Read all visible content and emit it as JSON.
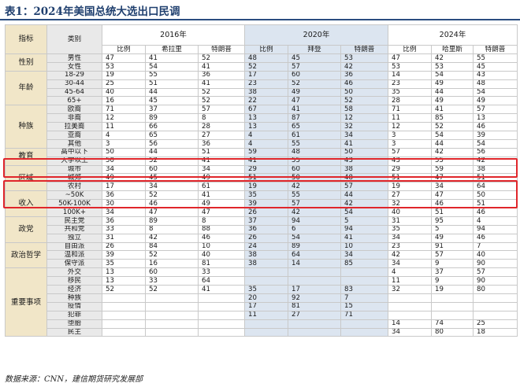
{
  "title": "表1：2024年美国总统大选出口民调",
  "source": "数据来源：CNN，建信期货研究发展部",
  "header": {
    "col_indicator": "指标",
    "col_category": "类别",
    "years": [
      "2016年",
      "2020年",
      "2024年"
    ],
    "sub": [
      [
        "比例",
        "希拉里",
        "特朗普"
      ],
      [
        "比例",
        "拜登",
        "特朗普"
      ],
      [
        "比例",
        "哈里斯",
        "特朗普"
      ]
    ]
  },
  "groups": [
    {
      "name": "性别",
      "rows": [
        {
          "label": "男性",
          "v": [
            "47",
            "41",
            "52",
            "48",
            "45",
            "53",
            "47",
            "42",
            "55"
          ]
        },
        {
          "label": "女性",
          "v": [
            "53",
            "54",
            "41",
            "52",
            "57",
            "42",
            "53",
            "53",
            "45"
          ]
        }
      ]
    },
    {
      "name": "年龄",
      "rows": [
        {
          "label": "18-29",
          "v": [
            "19",
            "55",
            "36",
            "17",
            "60",
            "36",
            "14",
            "54",
            "43"
          ]
        },
        {
          "label": "30-44",
          "v": [
            "25",
            "51",
            "41",
            "23",
            "52",
            "46",
            "23",
            "49",
            "48"
          ]
        },
        {
          "label": "45-64",
          "v": [
            "40",
            "44",
            "52",
            "38",
            "49",
            "50",
            "35",
            "44",
            "54"
          ]
        },
        {
          "label": "65+",
          "v": [
            "16",
            "45",
            "52",
            "22",
            "47",
            "52",
            "28",
            "49",
            "49"
          ]
        }
      ]
    },
    {
      "name": "种族",
      "rows": [
        {
          "label": "欧裔",
          "v": [
            "71",
            "37",
            "57",
            "67",
            "41",
            "58",
            "71",
            "41",
            "57"
          ]
        },
        {
          "label": "非裔",
          "v": [
            "12",
            "89",
            "8",
            "13",
            "87",
            "12",
            "11",
            "85",
            "13"
          ]
        },
        {
          "label": "拉美裔",
          "v": [
            "11",
            "66",
            "28",
            "13",
            "65",
            "32",
            "12",
            "52",
            "46"
          ]
        },
        {
          "label": "亚裔",
          "v": [
            "4",
            "65",
            "27",
            "4",
            "61",
            "34",
            "3",
            "54",
            "39"
          ]
        },
        {
          "label": "其他",
          "v": [
            "3",
            "56",
            "36",
            "4",
            "55",
            "41",
            "3",
            "44",
            "54"
          ]
        }
      ]
    },
    {
      "name": "教育",
      "rows": [
        {
          "label": "高中以下",
          "v": [
            "50",
            "44",
            "51",
            "59",
            "48",
            "50",
            "57",
            "42",
            "56"
          ]
        },
        {
          "label": "大学以上",
          "v": [
            "50",
            "52",
            "41",
            "41",
            "55",
            "43",
            "43",
            "55",
            "42"
          ]
        }
      ]
    },
    {
      "name": "区域",
      "rows": [
        {
          "label": "城市",
          "v": [
            "34",
            "60",
            "34",
            "29",
            "60",
            "38",
            "29",
            "59",
            "38"
          ]
        },
        {
          "label": "城郊",
          "v": [
            "49",
            "45",
            "49",
            "51",
            "50",
            "48",
            "51",
            "47",
            "51"
          ]
        },
        {
          "label": "农村",
          "v": [
            "17",
            "34",
            "61",
            "19",
            "42",
            "57",
            "19",
            "34",
            "64"
          ]
        }
      ]
    },
    {
      "name": "收入",
      "rows": [
        {
          "label": "~50K",
          "v": [
            "36",
            "52",
            "41",
            "35",
            "55",
            "44",
            "27",
            "47",
            "50"
          ]
        },
        {
          "label": "50K-100K",
          "v": [
            "30",
            "46",
            "49",
            "39",
            "57",
            "42",
            "32",
            "46",
            "51"
          ]
        },
        {
          "label": "100K+",
          "v": [
            "34",
            "47",
            "47",
            "26",
            "42",
            "54",
            "40",
            "51",
            "46"
          ]
        }
      ]
    },
    {
      "name": "政党",
      "rows": [
        {
          "label": "民主党",
          "v": [
            "36",
            "89",
            "8",
            "37",
            "94",
            "5",
            "31",
            "95",
            "4"
          ]
        },
        {
          "label": "共和党",
          "v": [
            "33",
            "8",
            "88",
            "36",
            "6",
            "94",
            "35",
            "5",
            "94"
          ]
        },
        {
          "label": "独立",
          "v": [
            "31",
            "42",
            "46",
            "26",
            "54",
            "41",
            "34",
            "49",
            "46"
          ]
        }
      ]
    },
    {
      "name": "政治哲学",
      "rows": [
        {
          "label": "自由派",
          "v": [
            "26",
            "84",
            "10",
            "24",
            "89",
            "10",
            "23",
            "91",
            "7"
          ]
        },
        {
          "label": "温和派",
          "v": [
            "39",
            "52",
            "40",
            "38",
            "64",
            "34",
            "42",
            "57",
            "40"
          ]
        },
        {
          "label": "保守派",
          "v": [
            "35",
            "16",
            "81",
            "38",
            "14",
            "85",
            "34",
            "9",
            "90"
          ]
        }
      ]
    },
    {
      "name": "重要事项",
      "rows": [
        {
          "label": "外交",
          "v": [
            "13",
            "60",
            "33",
            "",
            "",
            "",
            "4",
            "37",
            "57"
          ]
        },
        {
          "label": "移民",
          "v": [
            "13",
            "33",
            "64",
            "",
            "",
            "",
            "11",
            "9",
            "90"
          ]
        },
        {
          "label": "经济",
          "v": [
            "52",
            "52",
            "41",
            "35",
            "17",
            "83",
            "32",
            "19",
            "80"
          ]
        },
        {
          "label": "种族",
          "v": [
            "",
            "",
            "",
            "20",
            "92",
            "7",
            "",
            "",
            ""
          ]
        },
        {
          "label": "疫情",
          "v": [
            "",
            "",
            "",
            "17",
            "81",
            "15",
            "",
            "",
            ""
          ]
        },
        {
          "label": "犯罪",
          "v": [
            "",
            "",
            "",
            "11",
            "27",
            "71",
            "",
            "",
            ""
          ]
        },
        {
          "label": "堕胎",
          "v": [
            "",
            "",
            "",
            "",
            "",
            "",
            "14",
            "74",
            "25"
          ]
        },
        {
          "label": "民主",
          "v": [
            "",
            "",
            "",
            "",
            "",
            "",
            "34",
            "80",
            "18"
          ]
        }
      ]
    }
  ]
}
